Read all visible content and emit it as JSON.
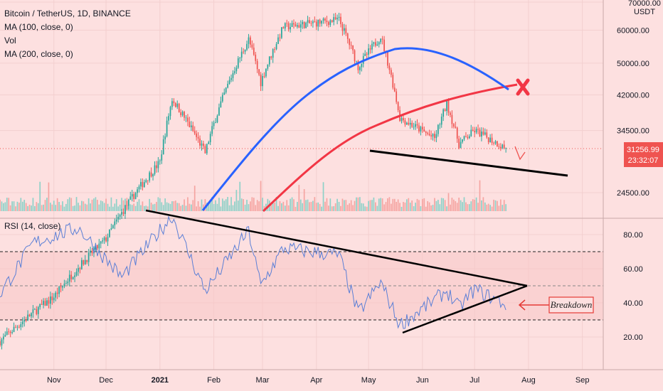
{
  "legend": {
    "symbol": "Bitcoin / TetherUS, 1D, BINANCE",
    "ma100": "MA (100, close, 0)",
    "vol": "Vol",
    "ma200": "MA (200, close, 0)"
  },
  "rsi_legend": "RSI (14, close)",
  "price_tag": {
    "price": "31256.99",
    "countdown": "23:32:07"
  },
  "annotation": "Breakdown",
  "colors": {
    "background": "#fde0e0",
    "candle_up": "#26a69a",
    "candle_down": "#ef5350",
    "ma100": "#2962ff",
    "ma200": "#f23645",
    "rsi": "#5b7fd6",
    "price_tag": "#ef5350"
  },
  "chart_data": [
    {
      "type": "candlestick",
      "title": "Bitcoin / TetherUS, 1D, BINANCE",
      "price_axis_unit": "USDT",
      "y_ticks": [
        "70000.00",
        "60000.00",
        "50000.00",
        "42000.00",
        "34500.00",
        "24500.00"
      ],
      "x_ticks": [
        "Nov",
        "Dec",
        "2021",
        "Feb",
        "Mar",
        "Apr",
        "May",
        "Jun",
        "Jul",
        "Aug",
        "Sep"
      ],
      "x_range": [
        "2020-10-01",
        "2021-09-13"
      ],
      "approx_closes": [
        {
          "date": "2020-10-01",
          "close": 10800
        },
        {
          "date": "2020-11-01",
          "close": 13800
        },
        {
          "date": "2020-12-01",
          "close": 19000
        },
        {
          "date": "2021-01-01",
          "close": 29000
        },
        {
          "date": "2021-01-08",
          "close": 41000
        },
        {
          "date": "2021-01-27",
          "close": 30500
        },
        {
          "date": "2021-02-21",
          "close": 57000
        },
        {
          "date": "2021-02-28",
          "close": 45000
        },
        {
          "date": "2021-03-13",
          "close": 61000
        },
        {
          "date": "2021-04-14",
          "close": 63500
        },
        {
          "date": "2021-04-25",
          "close": 49000
        },
        {
          "date": "2021-05-08",
          "close": 58000
        },
        {
          "date": "2021-05-19",
          "close": 37000
        },
        {
          "date": "2021-06-08",
          "close": 33000
        },
        {
          "date": "2021-06-15",
          "close": 40000
        },
        {
          "date": "2021-06-22",
          "close": 32000
        },
        {
          "date": "2021-07-01",
          "close": 34500
        },
        {
          "date": "2021-07-19",
          "close": 31257
        }
      ],
      "last_price": 31256.99,
      "indicators": [
        "MA (100, close, 0)",
        "MA (200, close, 0)",
        "Vol"
      ],
      "annotations": [
        "support trendline",
        "cross mark",
        "down arrow"
      ]
    },
    {
      "type": "line",
      "title": "RSI (14, close)",
      "y_ticks": [
        "80.00",
        "60.00",
        "40.00",
        "20.00"
      ],
      "bands": [
        30,
        50,
        70
      ],
      "approx_values": [
        {
          "date": "2020-10-01",
          "value": 45
        },
        {
          "date": "2020-10-20",
          "value": 75
        },
        {
          "date": "2020-11-15",
          "value": 84
        },
        {
          "date": "2020-12-10",
          "value": 55
        },
        {
          "date": "2021-01-08",
          "value": 91
        },
        {
          "date": "2021-01-27",
          "value": 47
        },
        {
          "date": "2021-02-21",
          "value": 82
        },
        {
          "date": "2021-02-28",
          "value": 50
        },
        {
          "date": "2021-03-13",
          "value": 72
        },
        {
          "date": "2021-04-14",
          "value": 68
        },
        {
          "date": "2021-04-25",
          "value": 34
        },
        {
          "date": "2021-05-08",
          "value": 52
        },
        {
          "date": "2021-05-19",
          "value": 27
        },
        {
          "date": "2021-06-15",
          "value": 47
        },
        {
          "date": "2021-06-22",
          "value": 37
        },
        {
          "date": "2021-07-01",
          "value": 48
        },
        {
          "date": "2021-07-19",
          "value": 39
        }
      ],
      "annotations": [
        "descending trendline",
        "ascending trendline",
        "Breakdown"
      ]
    }
  ]
}
